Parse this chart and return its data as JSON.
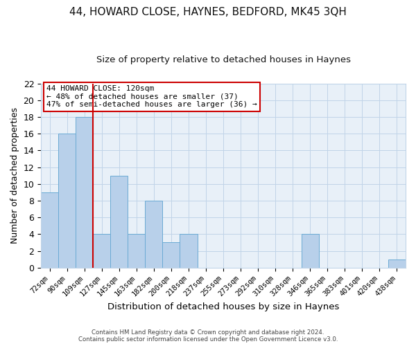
{
  "title": "44, HOWARD CLOSE, HAYNES, BEDFORD, MK45 3QH",
  "subtitle": "Size of property relative to detached houses in Haynes",
  "xlabel": "Distribution of detached houses by size in Haynes",
  "ylabel": "Number of detached properties",
  "bar_labels": [
    "72sqm",
    "90sqm",
    "109sqm",
    "127sqm",
    "145sqm",
    "163sqm",
    "182sqm",
    "200sqm",
    "218sqm",
    "237sqm",
    "255sqm",
    "273sqm",
    "292sqm",
    "310sqm",
    "328sqm",
    "346sqm",
    "365sqm",
    "383sqm",
    "401sqm",
    "420sqm",
    "438sqm"
  ],
  "bar_values": [
    9,
    16,
    18,
    4,
    11,
    4,
    8,
    3,
    4,
    0,
    0,
    0,
    0,
    0,
    0,
    4,
    0,
    0,
    0,
    0,
    1
  ],
  "bar_color": "#b8d0ea",
  "bar_edge_color": "#6aaad4",
  "vline_x_index": 2.5,
  "vline_color": "#cc0000",
  "ylim": [
    0,
    22
  ],
  "yticks": [
    0,
    2,
    4,
    6,
    8,
    10,
    12,
    14,
    16,
    18,
    20,
    22
  ],
  "annotation_title": "44 HOWARD CLOSE: 120sqm",
  "annotation_line1": "← 48% of detached houses are smaller (37)",
  "annotation_line2": "47% of semi-detached houses are larger (36) →",
  "annotation_box_color": "#ffffff",
  "annotation_box_edge": "#cc0000",
  "grid_color": "#c0d4e8",
  "plot_bg_color": "#e8f0f8",
  "fig_bg_color": "#ffffff",
  "footer1": "Contains HM Land Registry data © Crown copyright and database right 2024.",
  "footer2": "Contains public sector information licensed under the Open Government Licence v3.0."
}
